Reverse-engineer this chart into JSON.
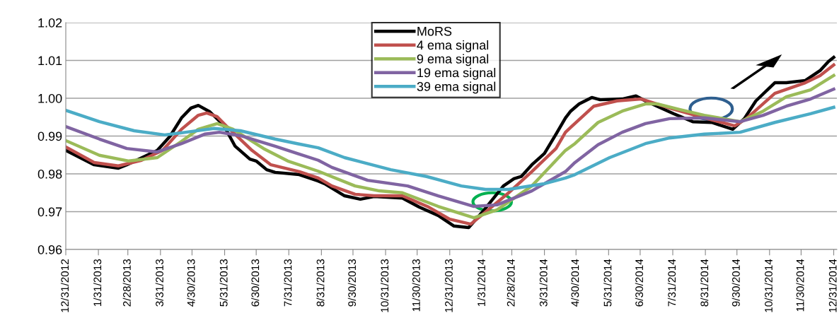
{
  "chart_data": {
    "type": "line",
    "xlim": [
      "2012-12-31",
      "2015-01-03"
    ],
    "xticks": [
      {
        "value": "2012-12-31",
        "label": "12/31/2012"
      },
      {
        "value": "2013-01-31",
        "label": "1/31/2013"
      },
      {
        "value": "2013-02-28",
        "label": "2/28/2013"
      },
      {
        "value": "2013-03-31",
        "label": "3/31/2013"
      },
      {
        "value": "2013-04-30",
        "label": "4/30/2013"
      },
      {
        "value": "2013-05-31",
        "label": "5/31/2013"
      },
      {
        "value": "2013-06-30",
        "label": "6/30/2013"
      },
      {
        "value": "2013-07-31",
        "label": "7/31/2013"
      },
      {
        "value": "2013-08-31",
        "label": "8/31/2013"
      },
      {
        "value": "2013-09-30",
        "label": "9/30/2013"
      },
      {
        "value": "2013-10-31",
        "label": "10/31/2013"
      },
      {
        "value": "2013-11-30",
        "label": "11/30/2013"
      },
      {
        "value": "2013-12-31",
        "label": "12/31/2013"
      },
      {
        "value": "2014-01-31",
        "label": "1/31/2014"
      },
      {
        "value": "2014-02-28",
        "label": "2/28/2014"
      },
      {
        "value": "2014-03-31",
        "label": "3/31/2014"
      },
      {
        "value": "2014-04-30",
        "label": "4/30/2014"
      },
      {
        "value": "2014-05-31",
        "label": "5/31/2014"
      },
      {
        "value": "2014-06-30",
        "label": "6/30/2014"
      },
      {
        "value": "2014-07-31",
        "label": "7/31/2014"
      },
      {
        "value": "2014-08-31",
        "label": "8/31/2014"
      },
      {
        "value": "2014-09-30",
        "label": "9/30/2014"
      },
      {
        "value": "2014-10-31",
        "label": "10/31/2014"
      },
      {
        "value": "2014-11-30",
        "label": "11/30/2014"
      },
      {
        "value": "2014-12-31",
        "label": "12/31/2014"
      }
    ],
    "ylim": [
      0.96,
      1.02
    ],
    "yticks": [
      0.96,
      0.97,
      0.98,
      0.99,
      {
        "value": 1.0,
        "label": "1.00"
      },
      1.01,
      1.02
    ],
    "grid": "y",
    "legend": "top",
    "marker": "none",
    "line_style": "solid",
    "series": [
      {
        "name": "MoRS",
        "color": "#000000",
        "x": [
          "2012-12-31",
          "2013-01-27",
          "2013-02-19",
          "2013-02-27",
          "2013-03-28",
          "2013-04-09",
          "2013-04-20",
          "2013-04-29",
          "2013-05-06",
          "2013-05-17",
          "2013-05-30",
          "2013-06-10",
          "2013-06-24",
          "2013-06-30",
          "2013-07-10",
          "2013-07-18",
          "2013-08-10",
          "2013-08-28",
          "2013-09-03",
          "2013-09-22",
          "2013-10-07",
          "2013-10-20",
          "2013-11-16",
          "2013-12-02",
          "2013-12-20",
          "2014-01-04",
          "2014-01-18",
          "2014-01-31",
          "2014-02-20",
          "2014-03-02",
          "2014-03-09",
          "2014-03-19",
          "2014-03-31",
          "2014-04-11",
          "2014-04-20",
          "2014-04-25",
          "2014-05-03",
          "2014-05-15",
          "2014-05-23",
          "2014-06-13",
          "2014-06-26",
          "2014-07-05",
          "2014-07-16",
          "2014-08-01",
          "2014-08-19",
          "2014-09-06",
          "2014-09-26",
          "2014-10-07",
          "2014-10-18",
          "2014-11-05",
          "2014-11-16",
          "2014-12-04",
          "2014-12-18",
          "2014-12-26",
          "2014-12-31"
        ],
        "values": [
          0.9862,
          0.9824,
          0.9815,
          0.9824,
          0.9862,
          0.9899,
          0.9948,
          0.9974,
          0.9981,
          0.9964,
          0.9929,
          0.9873,
          0.9839,
          0.9834,
          0.9811,
          0.9804,
          0.9798,
          0.9781,
          0.9774,
          0.9742,
          0.9733,
          0.974,
          0.9736,
          0.9712,
          0.969,
          0.9662,
          0.9658,
          0.9699,
          0.9768,
          0.9787,
          0.9793,
          0.9824,
          0.9854,
          0.9905,
          0.9948,
          0.9966,
          0.9985,
          1.0002,
          0.9996,
          0.9998,
          1.0006,
          0.9993,
          0.9979,
          0.9959,
          0.9938,
          0.9936,
          0.9918,
          0.9946,
          0.9993,
          1.0041,
          1.0041,
          1.0047,
          1.0073,
          1.0097,
          1.0108
        ]
      },
      {
        "name": "4 ema signal",
        "color": "#c0504d",
        "x": [
          "2012-12-31",
          "2013-01-27",
          "2013-02-19",
          "2013-03-13",
          "2013-04-02",
          "2013-04-20",
          "2013-05-06",
          "2013-05-14",
          "2013-05-24",
          "2013-06-03",
          "2013-06-26",
          "2013-07-14",
          "2013-08-10",
          "2013-08-28",
          "2013-09-10",
          "2013-10-02",
          "2013-10-20",
          "2013-11-16",
          "2013-12-11",
          "2013-12-31",
          "2014-01-20",
          "2014-02-03",
          "2014-02-25",
          "2014-03-19",
          "2014-04-11",
          "2014-04-20",
          "2014-04-25",
          "2014-05-17",
          "2014-06-08",
          "2014-07-01",
          "2014-07-28",
          "2014-08-30",
          "2014-09-28",
          "2014-10-09",
          "2014-11-05",
          "2014-12-04",
          "2014-12-18",
          "2014-12-31"
        ],
        "values": [
          0.9871,
          0.983,
          0.9821,
          0.9836,
          0.9862,
          0.9918,
          0.9955,
          0.9961,
          0.9951,
          0.9923,
          0.9862,
          0.9824,
          0.9806,
          0.9789,
          0.9768,
          0.9746,
          0.9742,
          0.9742,
          0.9712,
          0.968,
          0.9667,
          0.9699,
          0.975,
          0.9806,
          0.9867,
          0.991,
          0.9923,
          0.9979,
          0.9993,
          0.9998,
          0.9974,
          0.9948,
          0.9927,
          0.9946,
          1.0013,
          1.0041,
          1.006,
          1.0088
        ]
      },
      {
        "name": "9 ema signal",
        "color": "#9bbb59",
        "x": [
          "2012-12-31",
          "2013-02-01",
          "2013-03-01",
          "2013-03-28",
          "2013-04-20",
          "2013-05-06",
          "2013-05-24",
          "2013-06-08",
          "2013-07-07",
          "2013-07-30",
          "2013-08-28",
          "2013-10-02",
          "2013-10-25",
          "2013-11-16",
          "2013-12-20",
          "2014-01-23",
          "2014-02-14",
          "2014-03-19",
          "2014-04-20",
          "2014-04-29",
          "2014-05-21",
          "2014-06-13",
          "2014-07-05",
          "2014-07-16",
          "2014-08-07",
          "2014-08-30",
          "2014-10-03",
          "2014-10-25",
          "2014-11-16",
          "2014-12-09",
          "2014-12-31"
        ],
        "values": [
          0.9888,
          0.9849,
          0.9834,
          0.9843,
          0.9886,
          0.9918,
          0.9933,
          0.9918,
          0.9867,
          0.9834,
          0.9807,
          0.9768,
          0.9755,
          0.975,
          0.9714,
          0.9684,
          0.9705,
          0.9768,
          0.9862,
          0.988,
          0.9936,
          0.9966,
          0.9985,
          0.9985,
          0.997,
          0.9955,
          0.9938,
          0.9966,
          1.0004,
          1.0022,
          1.006
        ]
      },
      {
        "name": "19 ema signal",
        "color": "#8064a2",
        "x": [
          "2012-12-31",
          "2013-02-01",
          "2013-02-27",
          "2013-03-28",
          "2013-04-20",
          "2013-05-12",
          "2013-05-26",
          "2013-06-15",
          "2013-07-18",
          "2013-08-08",
          "2013-08-28",
          "2013-09-10",
          "2013-10-14",
          "2013-11-21",
          "2013-12-20",
          "2014-01-23",
          "2014-02-14",
          "2014-03-19",
          "2014-04-20",
          "2014-04-29",
          "2014-05-21",
          "2014-06-13",
          "2014-07-05",
          "2014-07-28",
          "2014-08-30",
          "2014-10-03",
          "2014-10-25",
          "2014-11-16",
          "2014-12-09",
          "2014-12-31"
        ],
        "values": [
          0.9925,
          0.9892,
          0.9867,
          0.9858,
          0.988,
          0.9905,
          0.991,
          0.9901,
          0.9873,
          0.9854,
          0.9836,
          0.9817,
          0.9783,
          0.9768,
          0.9742,
          0.9714,
          0.9718,
          0.9755,
          0.9806,
          0.983,
          0.9877,
          0.991,
          0.9933,
          0.9946,
          0.9948,
          0.9938,
          0.9955,
          0.9979,
          0.9998,
          1.0024
        ]
      },
      {
        "name": "39 ema signal",
        "color": "#4bacc6",
        "x": [
          "2012-12-31",
          "2013-02-01",
          "2013-03-06",
          "2013-04-04",
          "2013-04-24",
          "2013-05-21",
          "2013-06-15",
          "2013-07-18",
          "2013-08-08",
          "2013-08-28",
          "2013-09-22",
          "2013-11-05",
          "2013-12-09",
          "2014-01-11",
          "2014-02-03",
          "2014-02-25",
          "2014-03-31",
          "2014-04-20",
          "2014-04-29",
          "2014-06-01",
          "2014-07-05",
          "2014-07-28",
          "2014-08-30",
          "2014-10-03",
          "2014-11-05",
          "2014-12-09",
          "2014-12-31"
        ],
        "values": [
          0.9968,
          0.9938,
          0.9914,
          0.9903,
          0.991,
          0.992,
          0.9914,
          0.9892,
          0.988,
          0.9869,
          0.9843,
          0.9811,
          0.9793,
          0.9768,
          0.9759,
          0.9759,
          0.9774,
          0.9789,
          0.9798,
          0.9843,
          0.988,
          0.9895,
          0.9905,
          0.991,
          0.9936,
          0.9959,
          0.9976
        ]
      }
    ]
  }
}
